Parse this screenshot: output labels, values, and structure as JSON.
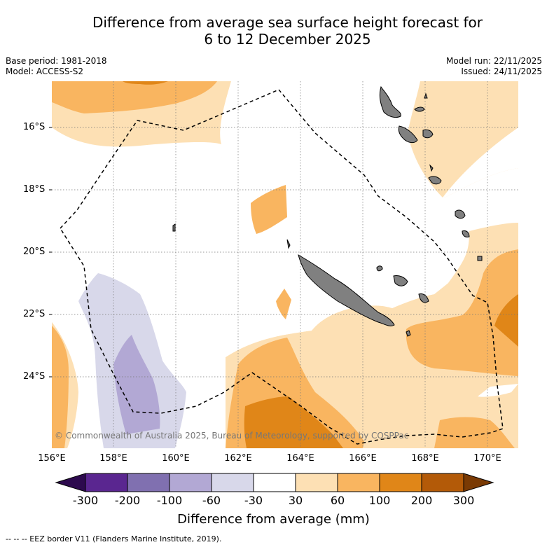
{
  "title": {
    "line1": "Difference from average sea surface height forecast for",
    "line2": "6 to 12 December 2025"
  },
  "meta": {
    "base_period": "Base period: 1981-2018",
    "model": "Model: ACCESS-S2",
    "model_run": "Model run: 22/11/2025",
    "issued": "Issued: 24/11/2025"
  },
  "map": {
    "copyright": "© Commonwealth of Australia 2025, Bureau of Meteorology, supported by COSPPac",
    "lat_labels": [
      "16°S",
      "18°S",
      "20°S",
      "22°S",
      "24°S"
    ],
    "lon_labels": [
      "156°E",
      "158°E",
      "160°E",
      "162°E",
      "164°E",
      "166°E",
      "168°E",
      "170°E"
    ]
  },
  "colorbar": {
    "title": "Difference from average (mm)",
    "ticks": [
      "-300",
      "-200",
      "-100",
      "-60",
      "-30",
      "30",
      "60",
      "100",
      "200",
      "300"
    ],
    "colors": {
      "lt_neg300": "#2d0a4e",
      "neg300_neg200": "#5a2690",
      "neg200_neg100": "#8070b0",
      "neg100_neg60": "#b2a8d4",
      "neg60_neg30": "#d8d8ea",
      "neg30_30": "#ffffff",
      "p30_60": "#fde0b4",
      "p60_100": "#f9b560",
      "p100_200": "#e08618",
      "p200_300": "#b35a08",
      "gt_300": "#7a3a04"
    }
  },
  "legend": {
    "text": "-- -- -- EEZ border V11 (Flanders Marine Institute, 2019)."
  }
}
